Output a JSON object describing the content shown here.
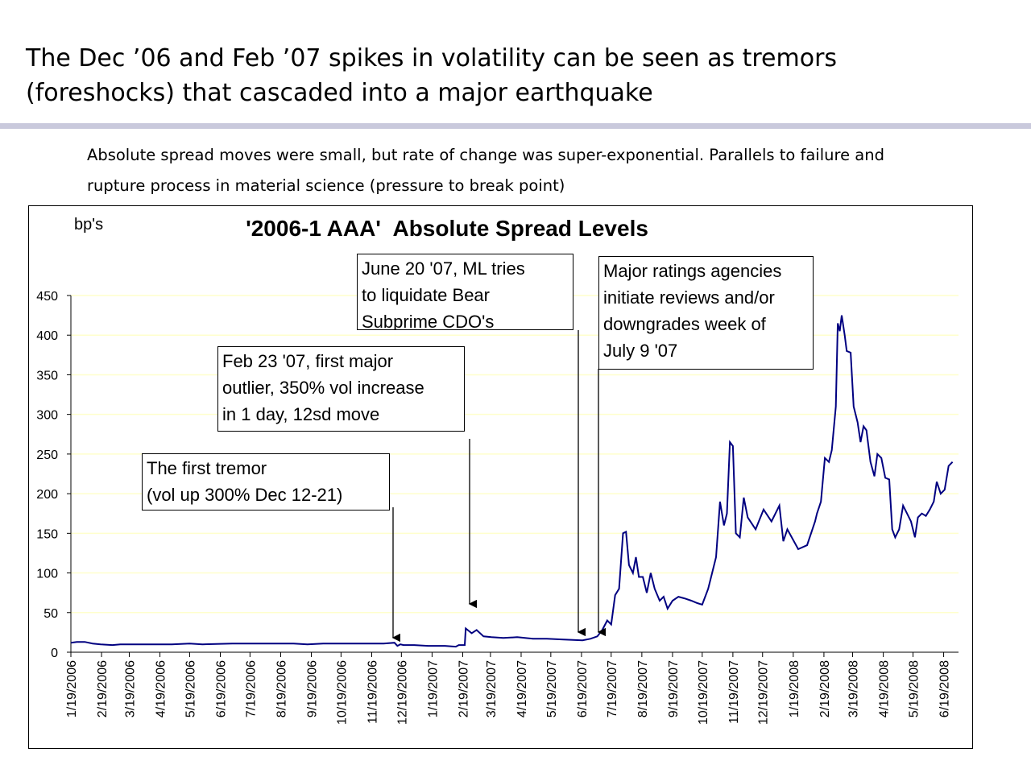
{
  "slide": {
    "title_lines": [
      "The Dec ’06 and Feb ’07 spikes in volatility can be seen as tremors",
      "(foreshocks) that cascaded into a major earthquake"
    ],
    "subtitle_lines": [
      "Absolute spread moves were small, but rate of change was super-exponential. Parallels to failure and",
      "rupture process in material science (pressure to break point)"
    ]
  },
  "chart_data": {
    "type": "line",
    "title": "'2006-1 AAA'  Absolute Spread Levels",
    "y_label": "bp's",
    "series": [
      {
        "color": "#000080",
        "x": [
          "1/19/2006",
          "1/25/2006",
          "2/2/2006",
          "2/10/2006",
          "2/18/2006",
          "3/2/2006",
          "3/10/2006",
          "4/1/2006",
          "5/1/2006",
          "5/19/2006",
          "6/1/2006",
          "7/1/2006",
          "8/1/2006",
          "9/1/2006",
          "9/15/2006",
          "10/1/2006",
          "11/1/2006",
          "12/1/2006",
          "12/12/2006",
          "12/15/2006",
          "12/18/2006",
          "12/21/2006",
          "1/1/2007",
          "1/15/2007",
          "2/1/2007",
          "2/12/2007",
          "2/15/2007",
          "2/21/2007",
          "2/22/2007",
          "2/28/2007",
          "3/5/2007",
          "3/12/2007",
          "3/20/2007",
          "4/1/2007",
          "4/15/2007",
          "5/1/2007",
          "5/15/2007",
          "6/1/2007",
          "6/20/2007",
          "6/28/2007",
          "7/5/2007",
          "7/10/2007",
          "7/15/2007",
          "7/19/2007",
          "7/23/2007",
          "7/27/2007",
          "7/31/2007",
          "8/3/2007",
          "8/6/2007",
          "8/10/2007",
          "8/13/2007",
          "8/16/2007",
          "8/20/2007",
          "8/24/2007",
          "8/28/2007",
          "9/1/2007",
          "9/6/2007",
          "9/10/2007",
          "9/14/2007",
          "9/19/2007",
          "9/25/2007",
          "10/1/2007",
          "10/8/2007",
          "10/14/2007",
          "10/19/2007",
          "10/25/2007",
          "10/29/2007",
          "11/2/2007",
          "11/6/2007",
          "11/10/2007",
          "11/13/2007",
          "11/16/2007",
          "11/19/2007",
          "11/22/2007",
          "11/26/2007",
          "11/30/2007",
          "12/4/2007",
          "12/12/2007",
          "12/20/2007",
          "12/28/2007",
          "1/5/2008",
          "1/9/2008",
          "1/13/2008",
          "1/24/2008",
          "2/2/2008",
          "2/10/2008",
          "2/12/2008",
          "2/16/2008",
          "2/20/2008",
          "2/24/2008",
          "2/27/2008",
          "3/2/2008",
          "3/4/2008",
          "3/6/2008",
          "3/8/2008",
          "3/11/2008",
          "3/13/2008",
          "3/17/2008",
          "3/20/2008",
          "3/24/2008",
          "3/27/2008",
          "3/30/2008",
          "4/2/2008",
          "4/6/2008",
          "4/10/2008",
          "4/13/2008",
          "4/17/2008",
          "4/21/2008",
          "4/25/2008",
          "4/28/2008",
          "5/1/2008",
          "5/5/2008",
          "5/9/2008",
          "5/13/2008",
          "5/17/2008",
          "5/21/2008",
          "5/24/2008",
          "5/28/2008",
          "6/1/2008",
          "6/5/2008",
          "6/9/2008",
          "6/12/2008",
          "6/16/2008",
          "6/20/2008",
          "6/24/2008",
          "6/28/2008"
        ],
        "values": [
          12,
          13,
          13,
          11,
          10,
          9,
          10,
          10,
          10,
          11,
          10,
          11,
          11,
          11,
          10,
          11,
          11,
          11,
          12,
          8,
          10,
          9,
          9,
          8,
          8,
          7,
          9,
          9,
          30,
          24,
          28,
          20,
          19,
          18,
          19,
          17,
          17,
          16,
          15,
          17,
          20,
          28,
          40,
          35,
          72,
          80,
          150,
          152,
          110,
          100,
          120,
          95,
          95,
          75,
          100,
          80,
          65,
          70,
          55,
          65,
          70,
          68,
          65,
          62,
          60,
          80,
          100,
          120,
          190,
          160,
          175,
          265,
          260,
          150,
          145,
          195,
          170,
          155,
          180,
          165,
          185,
          140,
          155,
          130,
          135,
          165,
          175,
          190,
          245,
          240,
          255,
          310,
          415,
          405,
          425,
          400,
          380,
          378,
          310,
          290,
          265,
          285,
          280,
          240,
          222,
          250,
          245,
          220,
          218,
          155,
          145,
          155,
          185,
          175,
          165,
          145,
          170,
          175,
          172,
          180,
          190,
          215,
          200,
          205,
          235,
          240
        ]
      }
    ],
    "xlim": [
      "1/19/2006",
      "7/4/2008"
    ],
    "xticks": [
      "1/19/2006",
      "2/19/2006",
      "3/19/2006",
      "4/19/2006",
      "5/19/2006",
      "6/19/2006",
      "7/19/2006",
      "8/19/2006",
      "9/19/2006",
      "10/19/2006",
      "11/19/2006",
      "12/19/2006",
      "1/19/2007",
      "2/19/2007",
      "3/19/2007",
      "4/19/2007",
      "5/19/2007",
      "6/19/2007",
      "7/19/2007",
      "8/19/2007",
      "9/19/2007",
      "10/19/2007",
      "11/19/2007",
      "12/19/2007",
      "1/19/2008",
      "2/19/2008",
      "3/19/2008",
      "4/19/2008",
      "5/19/2008",
      "6/19/2008"
    ],
    "ylim": [
      0,
      450
    ],
    "yticks": [
      0,
      50,
      100,
      150,
      200,
      250,
      300,
      350,
      400,
      450
    ],
    "grid": true,
    "annotations": [
      {
        "lines": [
          "The first tremor",
          "(vol up 300% Dec 12-21)"
        ]
      },
      {
        "lines": [
          "Feb 23 '07, first major",
          "outlier, 350% vol increase",
          "in 1 day, 12sd move"
        ]
      },
      {
        "lines": [
          "June 20 '07, ML tries",
          "to liquidate Bear",
          "Subprime CDO's"
        ]
      },
      {
        "lines": [
          "Major ratings agencies",
          "initiate reviews and/or",
          "downgrades week of",
          "July 9 '07"
        ]
      }
    ]
  }
}
